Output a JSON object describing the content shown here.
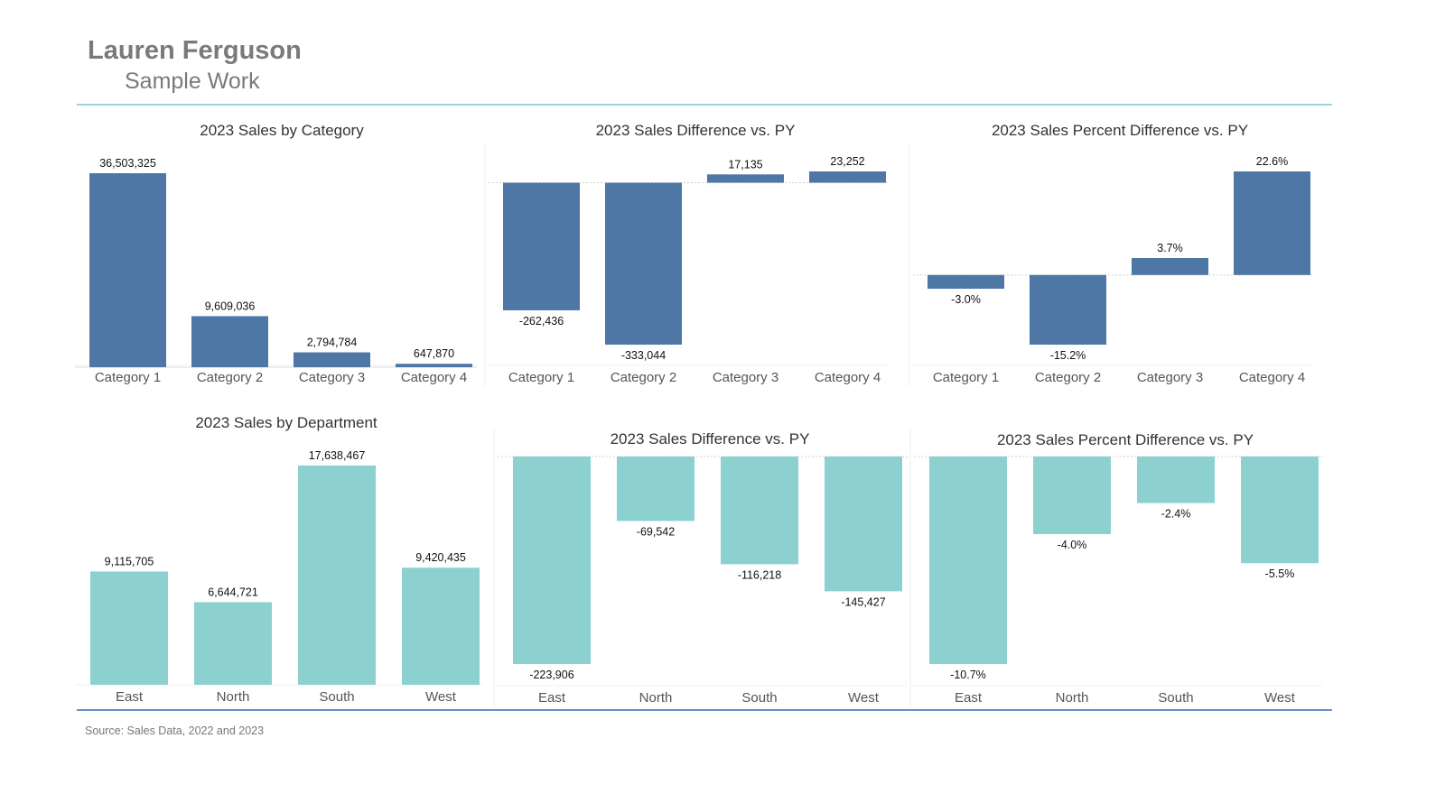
{
  "header": {
    "name": "Lauren Ferguson",
    "subtitle": "Sample Work"
  },
  "source": "Source: Sales Data, 2022 and 2023",
  "colors": {
    "category_bar": "#4e77a6",
    "department_bar": "#8cd1d0"
  },
  "chart_data": [
    {
      "type": "bar",
      "title": "2023 Sales by Category",
      "categories": [
        "Category 1",
        "Category 2",
        "Category 3",
        "Category 4"
      ],
      "values": [
        36503325,
        9609036,
        2794784,
        647870
      ],
      "labels": [
        "36,503,325",
        "9,609,036",
        "2,794,784",
        "647,870"
      ],
      "ylim": [
        0,
        36503325
      ]
    },
    {
      "type": "bar",
      "title": "2023 Sales Difference vs. PY",
      "categories": [
        "Category 1",
        "Category 2",
        "Category 3",
        "Category 4"
      ],
      "values": [
        -262436,
        -333044,
        17135,
        23252
      ],
      "labels": [
        "-262,436",
        "-333,044",
        "17,135",
        "23,252"
      ],
      "ylim": [
        -333044,
        23252
      ]
    },
    {
      "type": "bar",
      "title": "2023 Sales Percent Difference vs. PY",
      "categories": [
        "Category 1",
        "Category 2",
        "Category 3",
        "Category 4"
      ],
      "values": [
        -3.0,
        -15.2,
        3.7,
        22.6
      ],
      "labels": [
        "-3.0%",
        "-15.2%",
        "3.7%",
        "22.6%"
      ],
      "ylim": [
        -15.2,
        22.6
      ]
    },
    {
      "type": "bar",
      "title": "2023 Sales by Department",
      "categories": [
        "East",
        "North",
        "South",
        "West"
      ],
      "values": [
        9115705,
        6644721,
        17638467,
        9420435
      ],
      "labels": [
        "9,115,705",
        "6,644,721",
        "17,638,467",
        "9,420,435"
      ],
      "ylim": [
        0,
        17638467
      ]
    },
    {
      "type": "bar",
      "title": "2023 Sales Difference vs. PY",
      "categories": [
        "East",
        "North",
        "South",
        "West"
      ],
      "values": [
        -223906,
        -69542,
        -116218,
        -145427
      ],
      "labels": [
        "-223,906",
        "-69,542",
        "-116,218",
        "-145,427"
      ],
      "ylim": [
        -223906,
        0
      ]
    },
    {
      "type": "bar",
      "title": "2023 Sales Percent Difference vs. PY",
      "categories": [
        "East",
        "North",
        "South",
        "West"
      ],
      "values": [
        -10.7,
        -4.0,
        -2.4,
        -5.5
      ],
      "labels": [
        "-10.7%",
        "-4.0%",
        "-2.4%",
        "-5.5%"
      ],
      "ylim": [
        -10.7,
        0
      ]
    }
  ]
}
